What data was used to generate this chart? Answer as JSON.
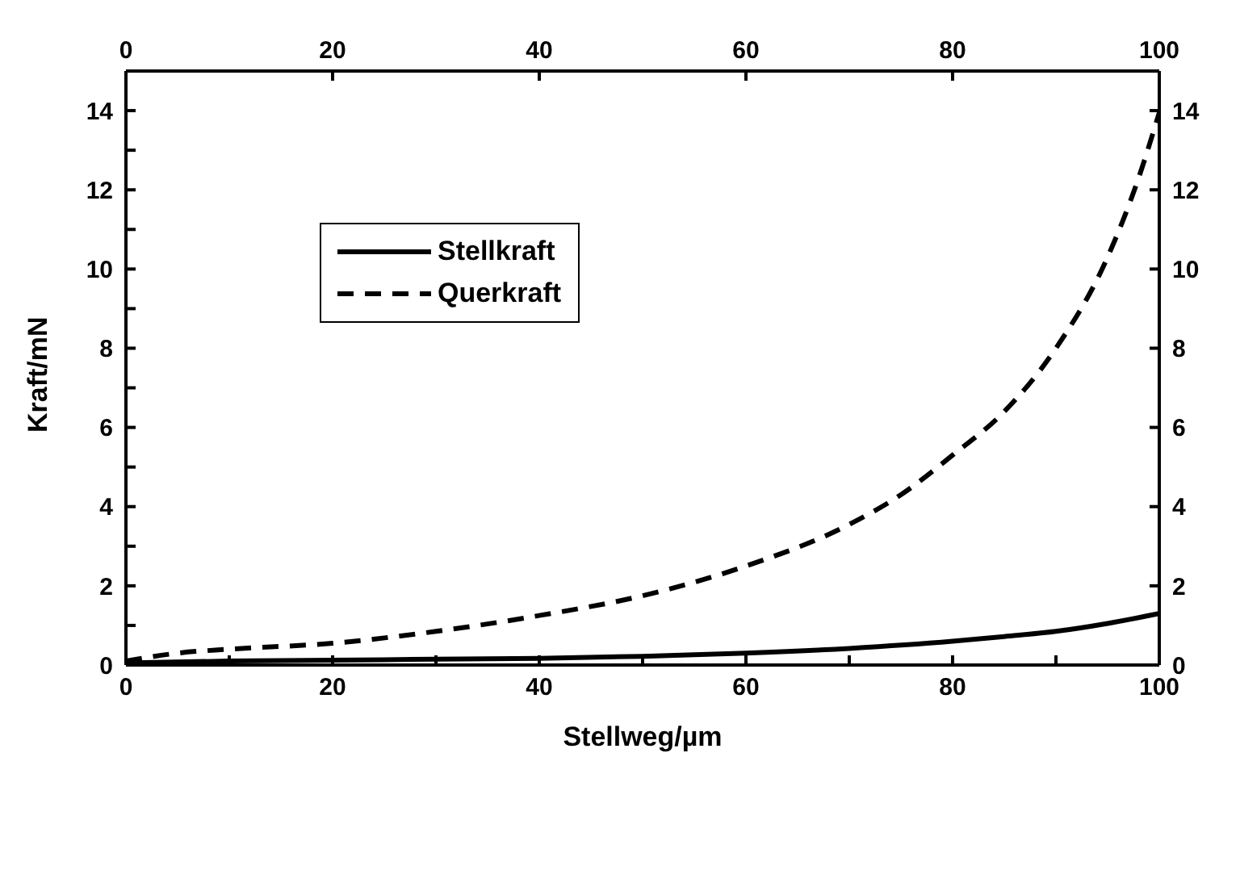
{
  "chart_data": {
    "type": "line",
    "xlabel": "Stellweg/µm",
    "ylabel": "Kraft/mN",
    "xlim": [
      0,
      100
    ],
    "ylim": [
      0,
      15
    ],
    "xticks": [
      0,
      {
        "value": 10,
        "label": null
      },
      20,
      {
        "value": 30,
        "label": null
      },
      40,
      {
        "value": 50,
        "label": null
      },
      60,
      {
        "value": 70,
        "label": null
      },
      80,
      {
        "value": 90,
        "label": null
      },
      100
    ],
    "yticks": [
      0,
      {
        "value": 1,
        "label": null
      },
      2,
      {
        "value": 3,
        "label": null
      },
      4,
      {
        "value": 5,
        "label": null
      },
      6,
      {
        "value": 7,
        "label": null
      },
      8,
      {
        "value": 9,
        "label": null
      },
      10,
      {
        "value": 11,
        "label": null
      },
      12,
      {
        "value": 13,
        "label": null
      },
      14
    ],
    "x2lim": [
      0,
      100
    ],
    "x2ticks": [
      0,
      20,
      40,
      60,
      80,
      100
    ],
    "y2lim": [
      0,
      15
    ],
    "y2ticks": [
      0,
      2,
      4,
      6,
      8,
      10,
      12,
      14
    ],
    "legend": "top left",
    "grid": false,
    "marker": "none",
    "series": [
      {
        "name": "Stellkraft",
        "color": "#000000",
        "line_style": "solid",
        "x": [
          0,
          10,
          20,
          30,
          40,
          50,
          60,
          70,
          80,
          85,
          90,
          95,
          100
        ],
        "values": [
          0.05,
          0.1,
          0.12,
          0.15,
          0.17,
          0.22,
          0.3,
          0.42,
          0.6,
          0.72,
          0.85,
          1.05,
          1.3
        ]
      },
      {
        "name": "Querkraft",
        "color": "#000000",
        "line_style": "dashed",
        "x": [
          0,
          5,
          10,
          20,
          30,
          40,
          50,
          60,
          70,
          75,
          80,
          85,
          90,
          95,
          98,
          100
        ],
        "values": [
          0.1,
          0.3,
          0.4,
          0.55,
          0.85,
          1.25,
          1.75,
          2.5,
          3.55,
          4.3,
          5.3,
          6.4,
          8.0,
          10.3,
          12.3,
          13.95
        ]
      }
    ]
  }
}
